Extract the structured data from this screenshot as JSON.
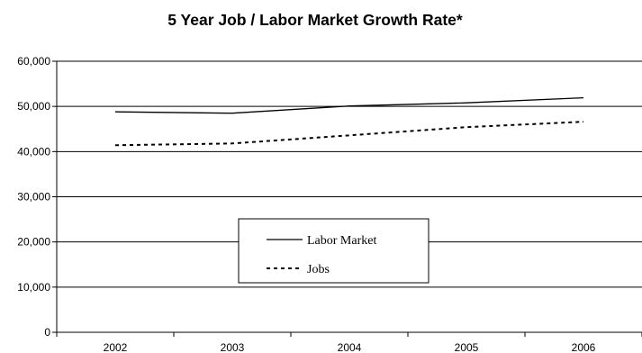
{
  "chart_data": {
    "type": "line",
    "title": "5 Year Job / Labor Market Growth Rate*",
    "xlabel": "",
    "ylabel": "",
    "x": [
      "2002",
      "2003",
      "2004",
      "2005",
      "2006"
    ],
    "ylim": [
      0,
      60000
    ],
    "yticks": [
      0,
      10000,
      20000,
      30000,
      40000,
      50000,
      60000
    ],
    "ytick_labels": [
      "0",
      "10,000",
      "20,000",
      "30,000",
      "40,000",
      "50,000",
      "60,000"
    ],
    "grid": true,
    "legend_position": "center",
    "series": [
      {
        "name": "Labor Market",
        "style": "solid",
        "color": "#000000",
        "values": [
          48800,
          48500,
          50100,
          50800,
          51900
        ]
      },
      {
        "name": "Jobs",
        "style": "dashed",
        "color": "#000000",
        "values": [
          41400,
          41800,
          43600,
          45400,
          46600
        ]
      }
    ]
  }
}
